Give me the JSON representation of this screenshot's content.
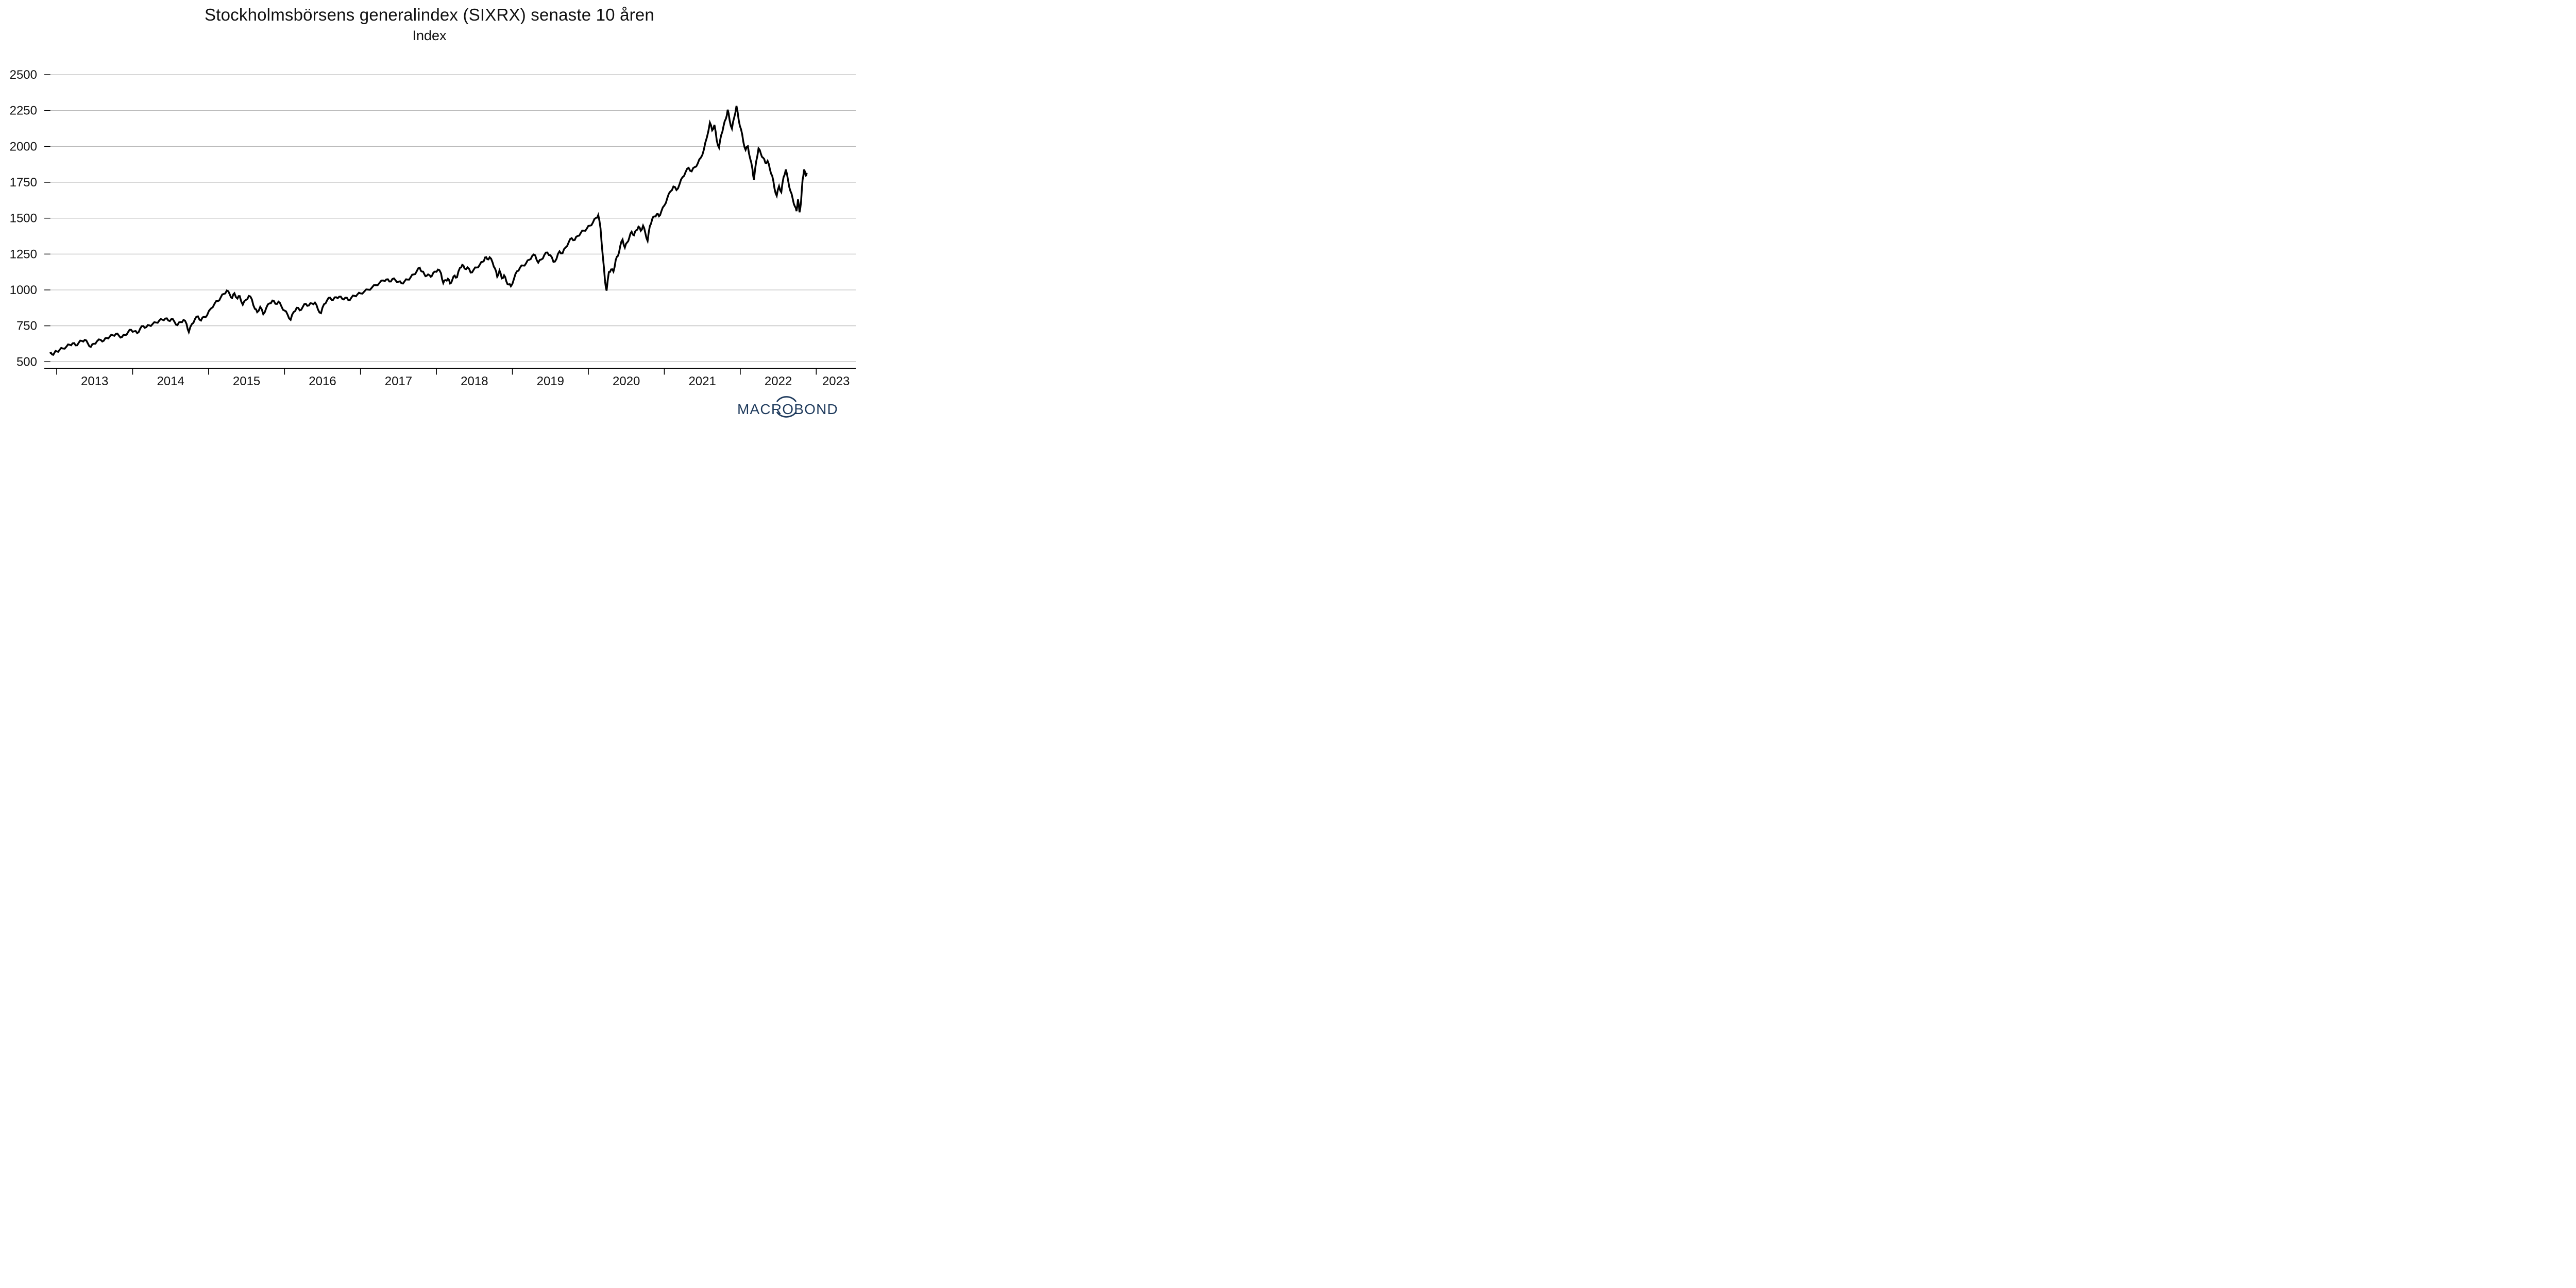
{
  "header": {
    "title": "Stockholmsbörsens generalindex (SIXRX) senaste 10 åren",
    "subtitle": "Index"
  },
  "footer": {
    "logo_text": "MACROBOND",
    "logo_icon": "macrobond-globe-icon",
    "logo_color": "#1e3a5c"
  },
  "colors": {
    "line": "#000000",
    "gridline": "#b0b0b0",
    "axis": "#000000",
    "text": "#111111",
    "background": "#ffffff"
  },
  "chart_data": {
    "type": "line",
    "title": "Stockholmsbörsens generalindex (SIXRX) senaste 10 åren",
    "subtitle": "Index",
    "xlabel": "",
    "ylabel": "Index",
    "legend_position": "none",
    "grid": "horizontal-only",
    "y_ticks": [
      500,
      750,
      1000,
      1250,
      1500,
      1750,
      2000,
      2250,
      2500
    ],
    "ylim": [
      410,
      2600
    ],
    "x_ticks": [
      2013,
      2014,
      2015,
      2016,
      2017,
      2018,
      2019,
      2020,
      2021,
      2022,
      2023
    ],
    "x_tick_labels": [
      "2013",
      "2014",
      "2015",
      "2016",
      "2017",
      "2018",
      "2019",
      "2020",
      "2021",
      "2022",
      "2023"
    ],
    "xlim": [
      2012.91,
      2023.52
    ],
    "series": [
      {
        "name": "SIXRX",
        "color": "#000000",
        "points": [
          [
            2012.91,
            558
          ],
          [
            2012.94,
            550
          ],
          [
            2012.97,
            562
          ],
          [
            2013.0,
            572
          ],
          [
            2013.04,
            583
          ],
          [
            2013.08,
            592
          ],
          [
            2013.13,
            606
          ],
          [
            2013.17,
            618
          ],
          [
            2013.21,
            628
          ],
          [
            2013.25,
            614
          ],
          [
            2013.29,
            632
          ],
          [
            2013.33,
            645
          ],
          [
            2013.37,
            652
          ],
          [
            2013.41,
            628
          ],
          [
            2013.45,
            603
          ],
          [
            2013.49,
            625
          ],
          [
            2013.53,
            642
          ],
          [
            2013.58,
            652
          ],
          [
            2013.62,
            646
          ],
          [
            2013.66,
            665
          ],
          [
            2013.7,
            676
          ],
          [
            2013.74,
            684
          ],
          [
            2013.78,
            694
          ],
          [
            2013.82,
            681
          ],
          [
            2013.86,
            672
          ],
          [
            2013.9,
            686
          ],
          [
            2013.94,
            706
          ],
          [
            2013.98,
            722
          ],
          [
            2014.02,
            712
          ],
          [
            2014.06,
            699
          ],
          [
            2014.1,
            731
          ],
          [
            2014.14,
            748
          ],
          [
            2014.18,
            741
          ],
          [
            2014.22,
            753
          ],
          [
            2014.26,
            761
          ],
          [
            2014.31,
            773
          ],
          [
            2014.35,
            786
          ],
          [
            2014.39,
            793
          ],
          [
            2014.43,
            801
          ],
          [
            2014.47,
            787
          ],
          [
            2014.51,
            797
          ],
          [
            2014.55,
            779
          ],
          [
            2014.59,
            755
          ],
          [
            2014.63,
            776
          ],
          [
            2014.67,
            791
          ],
          [
            2014.71,
            763
          ],
          [
            2014.74,
            706
          ],
          [
            2014.78,
            762
          ],
          [
            2014.82,
            796
          ],
          [
            2014.86,
            816
          ],
          [
            2014.9,
            787
          ],
          [
            2014.94,
            813
          ],
          [
            2014.98,
            823
          ],
          [
            2015.03,
            870
          ],
          [
            2015.08,
            906
          ],
          [
            2015.12,
            922
          ],
          [
            2015.16,
            948
          ],
          [
            2015.2,
            972
          ],
          [
            2015.24,
            996
          ],
          [
            2015.28,
            968
          ],
          [
            2015.31,
            944
          ],
          [
            2015.34,
            977
          ],
          [
            2015.38,
            940
          ],
          [
            2015.41,
            957
          ],
          [
            2015.45,
            897
          ],
          [
            2015.49,
            930
          ],
          [
            2015.53,
            958
          ],
          [
            2015.57,
            934
          ],
          [
            2015.61,
            868
          ],
          [
            2015.64,
            845
          ],
          [
            2015.68,
            882
          ],
          [
            2015.72,
            831
          ],
          [
            2015.76,
            876
          ],
          [
            2015.8,
            906
          ],
          [
            2015.84,
            926
          ],
          [
            2015.88,
            903
          ],
          [
            2015.92,
            918
          ],
          [
            2015.96,
            884
          ],
          [
            2016.0,
            856
          ],
          [
            2016.04,
            828
          ],
          [
            2016.08,
            792
          ],
          [
            2016.12,
            846
          ],
          [
            2016.16,
            876
          ],
          [
            2016.2,
            858
          ],
          [
            2016.24,
            882
          ],
          [
            2016.28,
            903
          ],
          [
            2016.32,
            892
          ],
          [
            2016.36,
            906
          ],
          [
            2016.4,
            912
          ],
          [
            2016.44,
            864
          ],
          [
            2016.48,
            838
          ],
          [
            2016.52,
            901
          ],
          [
            2016.56,
            928
          ],
          [
            2016.6,
            946
          ],
          [
            2016.64,
            931
          ],
          [
            2016.68,
            949
          ],
          [
            2016.72,
            953
          ],
          [
            2016.76,
            938
          ],
          [
            2016.8,
            946
          ],
          [
            2016.84,
            929
          ],
          [
            2016.88,
            946
          ],
          [
            2016.92,
            959
          ],
          [
            2016.96,
            969
          ],
          [
            2017.0,
            976
          ],
          [
            2017.05,
            989
          ],
          [
            2017.1,
            1002
          ],
          [
            2017.15,
            1016
          ],
          [
            2017.2,
            1033
          ],
          [
            2017.25,
            1049
          ],
          [
            2017.3,
            1066
          ],
          [
            2017.34,
            1073
          ],
          [
            2017.38,
            1059
          ],
          [
            2017.42,
            1076
          ],
          [
            2017.46,
            1068
          ],
          [
            2017.5,
            1057
          ],
          [
            2017.54,
            1046
          ],
          [
            2017.58,
            1060
          ],
          [
            2017.62,
            1072
          ],
          [
            2017.66,
            1088
          ],
          [
            2017.7,
            1108
          ],
          [
            2017.74,
            1130
          ],
          [
            2017.78,
            1155
          ],
          [
            2017.81,
            1128
          ],
          [
            2017.84,
            1110
          ],
          [
            2017.87,
            1098
          ],
          [
            2017.91,
            1102
          ],
          [
            2017.94,
            1098
          ],
          [
            2017.98,
            1128
          ],
          [
            2018.02,
            1142
          ],
          [
            2018.06,
            1116
          ],
          [
            2018.09,
            1048
          ],
          [
            2018.12,
            1068
          ],
          [
            2018.15,
            1078
          ],
          [
            2018.18,
            1045
          ],
          [
            2018.21,
            1072
          ],
          [
            2018.24,
            1100
          ],
          [
            2018.27,
            1088
          ],
          [
            2018.31,
            1155
          ],
          [
            2018.34,
            1175
          ],
          [
            2018.37,
            1149
          ],
          [
            2018.41,
            1157
          ],
          [
            2018.45,
            1121
          ],
          [
            2018.49,
            1141
          ],
          [
            2018.53,
            1156
          ],
          [
            2018.57,
            1176
          ],
          [
            2018.61,
            1196
          ],
          [
            2018.64,
            1226
          ],
          [
            2018.67,
            1214
          ],
          [
            2018.7,
            1228
          ],
          [
            2018.74,
            1190
          ],
          [
            2018.77,
            1150
          ],
          [
            2018.8,
            1092
          ],
          [
            2018.83,
            1136
          ],
          [
            2018.86,
            1080
          ],
          [
            2018.89,
            1102
          ],
          [
            2018.92,
            1060
          ],
          [
            2018.95,
            1038
          ],
          [
            2018.98,
            1026
          ],
          [
            2019.02,
            1076
          ],
          [
            2019.06,
            1130
          ],
          [
            2019.1,
            1155
          ],
          [
            2019.14,
            1170
          ],
          [
            2019.18,
            1186
          ],
          [
            2019.22,
            1210
          ],
          [
            2019.26,
            1236
          ],
          [
            2019.3,
            1241
          ],
          [
            2019.34,
            1190
          ],
          [
            2019.38,
            1212
          ],
          [
            2019.42,
            1243
          ],
          [
            2019.46,
            1261
          ],
          [
            2019.5,
            1242
          ],
          [
            2019.54,
            1196
          ],
          [
            2019.58,
            1216
          ],
          [
            2019.62,
            1269
          ],
          [
            2019.66,
            1256
          ],
          [
            2019.7,
            1296
          ],
          [
            2019.74,
            1331
          ],
          [
            2019.78,
            1361
          ],
          [
            2019.82,
            1348
          ],
          [
            2019.86,
            1376
          ],
          [
            2019.9,
            1398
          ],
          [
            2019.94,
            1413
          ],
          [
            2019.98,
            1428
          ],
          [
            2020.02,
            1448
          ],
          [
            2020.06,
            1470
          ],
          [
            2020.1,
            1502
          ],
          [
            2020.13,
            1522
          ],
          [
            2020.16,
            1430
          ],
          [
            2020.19,
            1238
          ],
          [
            2020.22,
            1060
          ],
          [
            2020.24,
            995
          ],
          [
            2020.27,
            1125
          ],
          [
            2020.3,
            1143
          ],
          [
            2020.33,
            1128
          ],
          [
            2020.36,
            1208
          ],
          [
            2020.39,
            1238
          ],
          [
            2020.42,
            1306
          ],
          [
            2020.45,
            1351
          ],
          [
            2020.48,
            1295
          ],
          [
            2020.51,
            1331
          ],
          [
            2020.54,
            1366
          ],
          [
            2020.57,
            1406
          ],
          [
            2020.6,
            1381
          ],
          [
            2020.63,
            1416
          ],
          [
            2020.66,
            1441
          ],
          [
            2020.69,
            1412
          ],
          [
            2020.72,
            1448
          ],
          [
            2020.75,
            1396
          ],
          [
            2020.78,
            1342
          ],
          [
            2020.81,
            1446
          ],
          [
            2020.84,
            1493
          ],
          [
            2020.87,
            1512
          ],
          [
            2020.9,
            1528
          ],
          [
            2020.93,
            1514
          ],
          [
            2020.96,
            1546
          ],
          [
            2021.0,
            1588
          ],
          [
            2021.04,
            1641
          ],
          [
            2021.08,
            1686
          ],
          [
            2021.12,
            1721
          ],
          [
            2021.16,
            1696
          ],
          [
            2021.2,
            1736
          ],
          [
            2021.24,
            1786
          ],
          [
            2021.28,
            1821
          ],
          [
            2021.32,
            1851
          ],
          [
            2021.36,
            1826
          ],
          [
            2021.4,
            1856
          ],
          [
            2021.44,
            1881
          ],
          [
            2021.48,
            1921
          ],
          [
            2021.52,
            1976
          ],
          [
            2021.56,
            2062
          ],
          [
            2021.6,
            2166
          ],
          [
            2021.63,
            2112
          ],
          [
            2021.66,
            2150
          ],
          [
            2021.69,
            2042
          ],
          [
            2021.72,
            1992
          ],
          [
            2021.75,
            2081
          ],
          [
            2021.78,
            2142
          ],
          [
            2021.81,
            2192
          ],
          [
            2021.835,
            2256
          ],
          [
            2021.86,
            2182
          ],
          [
            2021.89,
            2124
          ],
          [
            2021.92,
            2202
          ],
          [
            2021.95,
            2282
          ],
          [
            2021.98,
            2182
          ],
          [
            2022.01,
            2120
          ],
          [
            2022.04,
            2032
          ],
          [
            2022.07,
            1976
          ],
          [
            2022.1,
            2002
          ],
          [
            2022.13,
            1916
          ],
          [
            2022.16,
            1842
          ],
          [
            2022.18,
            1768
          ],
          [
            2022.21,
            1896
          ],
          [
            2022.24,
            1986
          ],
          [
            2022.27,
            1951
          ],
          [
            2022.3,
            1921
          ],
          [
            2022.33,
            1886
          ],
          [
            2022.36,
            1899
          ],
          [
            2022.39,
            1841
          ],
          [
            2022.42,
            1796
          ],
          [
            2022.45,
            1709
          ],
          [
            2022.48,
            1656
          ],
          [
            2022.51,
            1723
          ],
          [
            2022.54,
            1681
          ],
          [
            2022.57,
            1786
          ],
          [
            2022.6,
            1839
          ],
          [
            2022.63,
            1761
          ],
          [
            2022.66,
            1689
          ],
          [
            2022.69,
            1636
          ],
          [
            2022.72,
            1581
          ],
          [
            2022.74,
            1549
          ],
          [
            2022.76,
            1631
          ],
          [
            2022.78,
            1541
          ],
          [
            2022.8,
            1613
          ],
          [
            2022.82,
            1766
          ],
          [
            2022.84,
            1839
          ],
          [
            2022.86,
            1796
          ],
          [
            2022.875,
            1816
          ]
        ]
      }
    ]
  }
}
